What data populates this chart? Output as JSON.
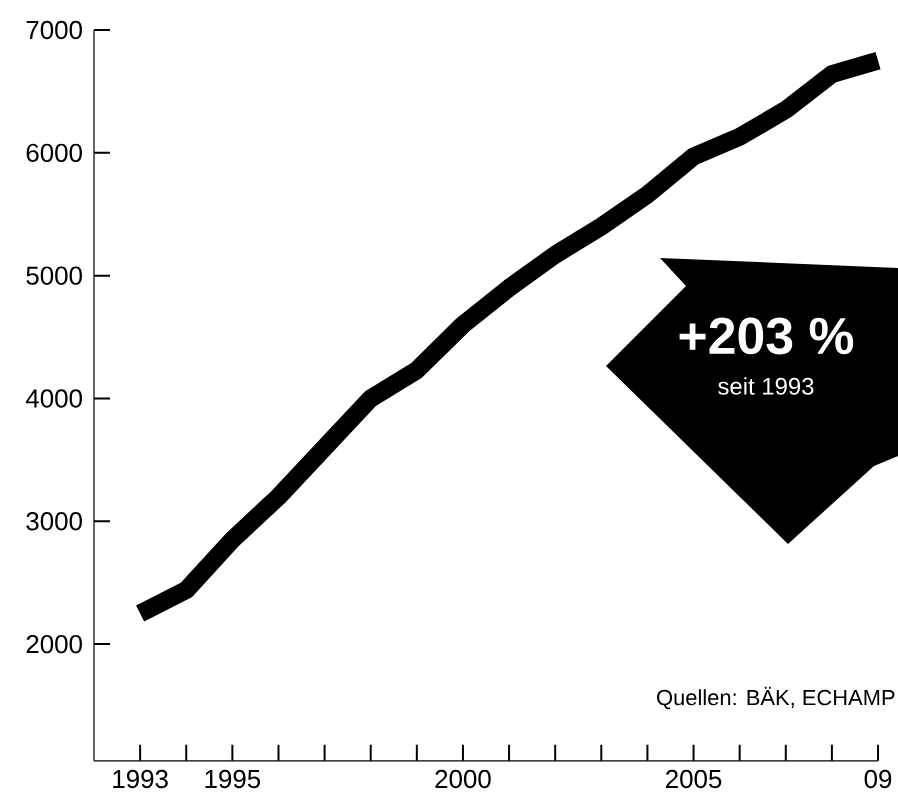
{
  "chart_data": {
    "type": "line",
    "x": [
      1993,
      1994,
      1995,
      1996,
      1997,
      1998,
      1999,
      2000,
      2001,
      2002,
      2003,
      2004,
      2005,
      2006,
      2007,
      2008,
      2009
    ],
    "series": [
      {
        "color": "#000000",
        "values": [
          2250,
          2440,
          2850,
          3200,
          3600,
          4000,
          4230,
          4600,
          4900,
          5170,
          5400,
          5660,
          5970,
          6130,
          6350,
          6640,
          6750
        ]
      }
    ],
    "xlim": [
      1992,
      2009
    ],
    "ylim": [
      1050,
      7000
    ],
    "xticks": [
      {
        "value": 1993,
        "label": "1993"
      },
      {
        "value": 1994,
        "label": null
      },
      {
        "value": 1995,
        "label": "1995"
      },
      {
        "value": 1996,
        "label": null
      },
      {
        "value": 1997,
        "label": null
      },
      {
        "value": 1998,
        "label": null
      },
      {
        "value": 1999,
        "label": null
      },
      {
        "value": 2000,
        "label": "2000"
      },
      {
        "value": 2001,
        "label": null
      },
      {
        "value": 2002,
        "label": null
      },
      {
        "value": 2003,
        "label": null
      },
      {
        "value": 2004,
        "label": null
      },
      {
        "value": 2005,
        "label": "2005"
      },
      {
        "value": 2006,
        "label": null
      },
      {
        "value": 2007,
        "label": null
      },
      {
        "value": 2008,
        "label": null
      },
      {
        "value": 2009,
        "label": "09"
      }
    ],
    "yticks": [
      2000,
      3000,
      4000,
      5000,
      6000,
      7000
    ],
    "annotations": [
      "+203 %",
      "seit 1993",
      "Quellen: BÄK, ECHAMP"
    ],
    "grid": false,
    "legend": false,
    "marker": "none",
    "line_style": "solid"
  }
}
